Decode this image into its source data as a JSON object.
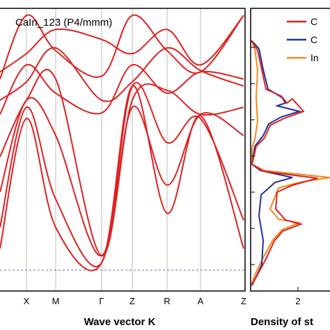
{
  "chart_data": [
    {
      "type": "line",
      "title": "CaIn_123 (P4/mmm)",
      "xlabel": "Wave vector K",
      "ylabel": "",
      "grid": "vertical lines at high-symmetry points",
      "high_symmetry_points": [
        "X",
        "M",
        "Γ",
        "Z",
        "R",
        "A",
        "Z"
      ],
      "fermi_level_line": "dashed blue, at the bottom of the lower band group",
      "series": [
        {
          "color": "#e02020",
          "x": [
            0,
            1,
            2,
            3,
            4,
            5,
            6,
            7
          ],
          "values": [
            0.5,
            0.95,
            0.7,
            0.52,
            0.95,
            0.7,
            0.55,
            0.95
          ]
        },
        {
          "color": "#e02020",
          "x": [
            0,
            1,
            2,
            3,
            4,
            5,
            6,
            7
          ],
          "values": [
            0.55,
            0.68,
            0.85,
            0.78,
            0.68,
            0.85,
            0.6,
            0.95
          ]
        },
        {
          "color": "#e02020",
          "x": [
            0,
            1,
            2,
            3,
            4,
            5,
            6,
            7
          ],
          "values": [
            0.25,
            0.6,
            0.4,
            0.26,
            0.6,
            0.4,
            0.55,
            0.5
          ]
        },
        {
          "color": "#e02020",
          "x": [
            0,
            1,
            2,
            3,
            4,
            5,
            6,
            7
          ],
          "values": [
            0.35,
            0.48,
            0.72,
            0.35,
            0.48,
            0.72,
            0.56,
            0.45
          ]
        },
        {
          "color": "#e02020",
          "x": [
            0,
            1,
            2,
            3,
            4,
            5,
            6,
            7
          ],
          "values": [
            -0.05,
            0.35,
            0.5,
            -0.75,
            0.35,
            0.42,
            0.25,
            0.3
          ]
        },
        {
          "color": "#e02020",
          "x": [
            0,
            1,
            2,
            3,
            4,
            5,
            6,
            7
          ],
          "values": [
            -0.3,
            0.35,
            0.1,
            -0.75,
            0.3,
            -0.25,
            0.25,
            0.1
          ]
        },
        {
          "color": "#e02020",
          "x": [
            0,
            1,
            2,
            3,
            4,
            5,
            6,
            7
          ],
          "values": [
            -0.55,
            0.3,
            -0.35,
            -0.8,
            0.45,
            0.05,
            0.22,
            -0.5
          ]
        },
        {
          "color": "#e02020",
          "x": [
            0,
            1,
            2,
            3,
            4,
            5,
            6,
            7
          ],
          "values": [
            -0.7,
            0.22,
            -0.55,
            -0.8,
            0.45,
            -0.45,
            0.24,
            -0.7
          ]
        }
      ]
    },
    {
      "type": "line",
      "title": "",
      "xlabel": "Density of st",
      "x_ticks": [
        "2"
      ],
      "legend": {
        "placement": "top-right",
        "entries": [
          "C",
          "C",
          "In"
        ]
      },
      "series": [
        {
          "name": "C",
          "color": "#e02020"
        },
        {
          "name": "C",
          "color": "#2030a0"
        },
        {
          "name": "In",
          "color": "#f08a1c"
        }
      ]
    }
  ]
}
